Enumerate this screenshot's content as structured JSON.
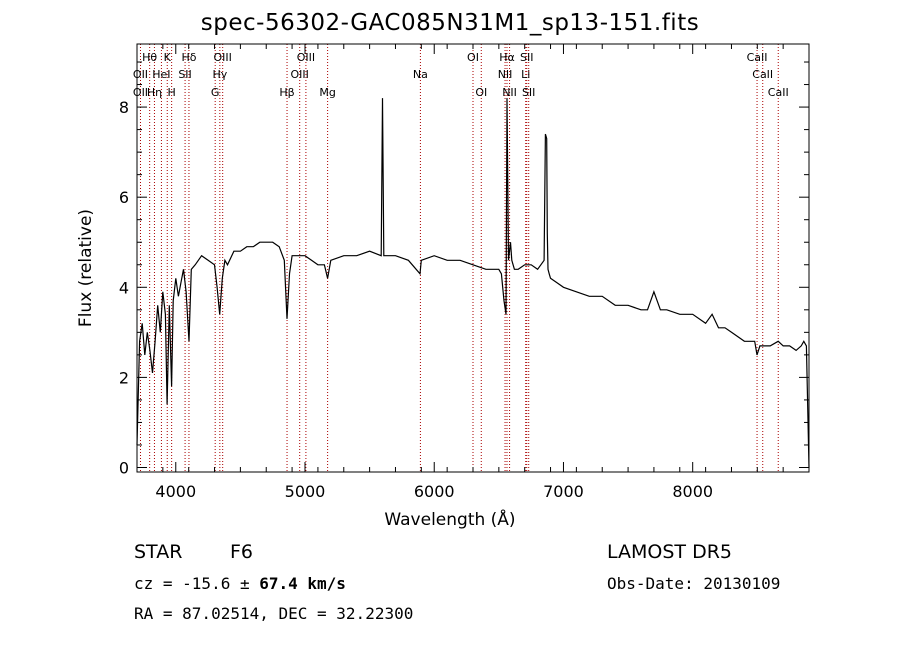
{
  "chart_data": {
    "type": "line",
    "title": "spec-56302-GAC085N31M1_sp13-151.fits",
    "xlabel": "Wavelength (Å)",
    "ylabel": "Flux (relative)",
    "xlim": [
      3700,
      8900
    ],
    "ylim": [
      -0.1,
      9.4
    ],
    "xticks": [
      4000,
      5000,
      6000,
      7000,
      8000
    ],
    "yticks": [
      0,
      2,
      4,
      6,
      8
    ],
    "grid": false,
    "series": [
      {
        "x": [
          3700,
          3720,
          3740,
          3760,
          3780,
          3800,
          3820,
          3840,
          3860,
          3880,
          3900,
          3920,
          3933,
          3950,
          3968,
          3980,
          4000,
          4020,
          4040,
          4060,
          4080,
          4102,
          4120,
          4150,
          4200,
          4250,
          4300,
          4320,
          4340,
          4360,
          4380,
          4400,
          4450,
          4500,
          4550,
          4600,
          4650,
          4700,
          4750,
          4800,
          4840,
          4861,
          4880,
          4900,
          4950,
          5000,
          5050,
          5100,
          5150,
          5175,
          5200,
          5300,
          5400,
          5500,
          5590,
          5600,
          5610,
          5700,
          5800,
          5890,
          5900,
          6000,
          6100,
          6200,
          6300,
          6400,
          6500,
          6520,
          6540,
          6555,
          6563,
          6575,
          6590,
          6600,
          6610,
          6620,
          6650,
          6700,
          6750,
          6800,
          6850,
          6860,
          6870,
          6875,
          6880,
          6890,
          6900,
          6950,
          7000,
          7100,
          7200,
          7300,
          7400,
          7500,
          7600,
          7650,
          7700,
          7750,
          7800,
          7900,
          8000,
          8100,
          8150,
          8200,
          8250,
          8300,
          8400,
          8480,
          8498,
          8520,
          8542,
          8570,
          8600,
          8662,
          8700,
          8750,
          8800,
          8840,
          8860,
          8880,
          8900
        ],
        "y": [
          0.5,
          2.8,
          3.2,
          2.5,
          3.0,
          2.6,
          2.1,
          2.8,
          3.6,
          3.0,
          3.9,
          3.4,
          1.4,
          3.6,
          1.8,
          3.7,
          4.2,
          3.8,
          4.1,
          4.4,
          3.9,
          2.8,
          4.4,
          4.5,
          4.7,
          4.6,
          4.5,
          4.0,
          3.4,
          4.2,
          4.6,
          4.5,
          4.8,
          4.8,
          4.9,
          4.9,
          5.0,
          5.0,
          5.0,
          4.9,
          4.6,
          3.3,
          4.3,
          4.7,
          4.7,
          4.7,
          4.6,
          4.5,
          4.5,
          4.2,
          4.6,
          4.7,
          4.7,
          4.8,
          4.7,
          8.2,
          4.7,
          4.7,
          4.6,
          4.3,
          4.6,
          4.7,
          4.6,
          4.6,
          4.5,
          4.4,
          4.4,
          4.3,
          3.7,
          3.4,
          8.2,
          4.6,
          5.0,
          4.6,
          4.5,
          4.4,
          4.4,
          4.5,
          4.5,
          4.4,
          4.6,
          7.4,
          7.3,
          5.2,
          4.4,
          4.3,
          4.2,
          4.1,
          4.0,
          3.9,
          3.8,
          3.8,
          3.6,
          3.6,
          3.5,
          3.5,
          3.9,
          3.5,
          3.5,
          3.4,
          3.4,
          3.2,
          3.4,
          3.1,
          3.1,
          3.0,
          2.8,
          2.8,
          2.5,
          2.7,
          2.7,
          2.7,
          2.7,
          2.8,
          2.7,
          2.7,
          2.6,
          2.7,
          2.8,
          2.7,
          0.0
        ]
      }
    ],
    "lines": [
      {
        "label": "Hθ",
        "x": 3798,
        "row": 0
      },
      {
        "label": "OII",
        "x": 3727,
        "row": 1
      },
      {
        "label": "OII",
        "x": 3727,
        "row": 2
      },
      {
        "label": "Hη",
        "x": 3835,
        "row": 2
      },
      {
        "label": "HeI",
        "x": 3889,
        "row": 1
      },
      {
        "label": "K",
        "x": 3934,
        "row": 0
      },
      {
        "label": "H",
        "x": 3968,
        "row": 2
      },
      {
        "label": "Hδ",
        "x": 4102,
        "row": 0
      },
      {
        "label": "SII",
        "x": 4072,
        "row": 1
      },
      {
        "label": "OIII",
        "x": 4363,
        "row": 0
      },
      {
        "label": "Hγ",
        "x": 4341,
        "row": 1
      },
      {
        "label": "G",
        "x": 4305,
        "row": 2
      },
      {
        "label": "Hβ",
        "x": 4861,
        "row": 2
      },
      {
        "label": "OIII",
        "x": 5007,
        "row": 0
      },
      {
        "label": "OIII",
        "x": 4959,
        "row": 1
      },
      {
        "label": "Mg",
        "x": 5175,
        "row": 2
      },
      {
        "label": "Na",
        "x": 5893,
        "row": 1
      },
      {
        "label": "OI",
        "x": 6300,
        "row": 0
      },
      {
        "label": "OI",
        "x": 6364,
        "row": 2
      },
      {
        "label": "Hα",
        "x": 6563,
        "row": 0
      },
      {
        "label": "NII",
        "x": 6548,
        "row": 1
      },
      {
        "label": "NII",
        "x": 6583,
        "row": 2
      },
      {
        "label": "SII",
        "x": 6716,
        "row": 0
      },
      {
        "label": "Li",
        "x": 6708,
        "row": 1
      },
      {
        "label": "SII",
        "x": 6731,
        "row": 2
      },
      {
        "label": "CaII",
        "x": 8498,
        "row": 0
      },
      {
        "label": "CaII",
        "x": 8542,
        "row": 1
      },
      {
        "label": "CaII",
        "x": 8662,
        "row": 2
      }
    ],
    "colors": {
      "line": "#000000",
      "markers": "#aa0000"
    }
  },
  "info": {
    "class": "STAR",
    "subclass": "F6",
    "survey": "LAMOST DR5",
    "cz_prefix": "cz = -15.6 ± ",
    "cz_err": "67.4 km/s",
    "obs_date": "Obs-Date: 20130109",
    "radec": "RA =  87.02514, DEC =  32.22300"
  }
}
